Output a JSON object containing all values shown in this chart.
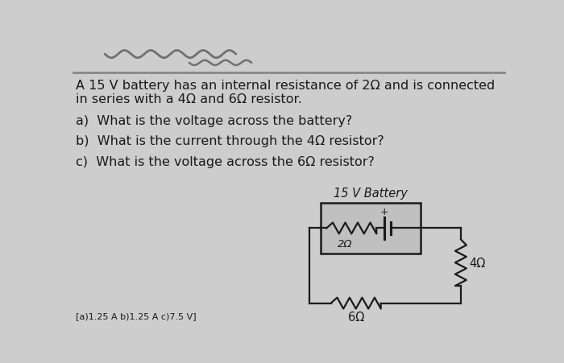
{
  "bg_color": "#cdcdcd",
  "text_color": "#1a1a1a",
  "title_text": "A 15 V battery has an internal resistance of 2Ω and is connected\nin series with a 4Ω and 6Ω resistor.",
  "question_a": "a)  What is the voltage across the battery?",
  "question_b": "b)  What is the current through the 4Ω resistor?",
  "question_c": "c)  What is the voltage across the 6Ω resistor?",
  "answer_text": "[a)1.25 A b)1.25 A c)7.5 V]",
  "circuit_label": "15 V Battery",
  "resistor_2ohm": "2Ω",
  "resistor_4ohm": "4Ω",
  "resistor_6ohm": "6Ω",
  "line_color": "#1a1a1a",
  "box_bg": "#c0c0c0",
  "squiggle_color": "#808080",
  "sep_line_color": "#888888"
}
